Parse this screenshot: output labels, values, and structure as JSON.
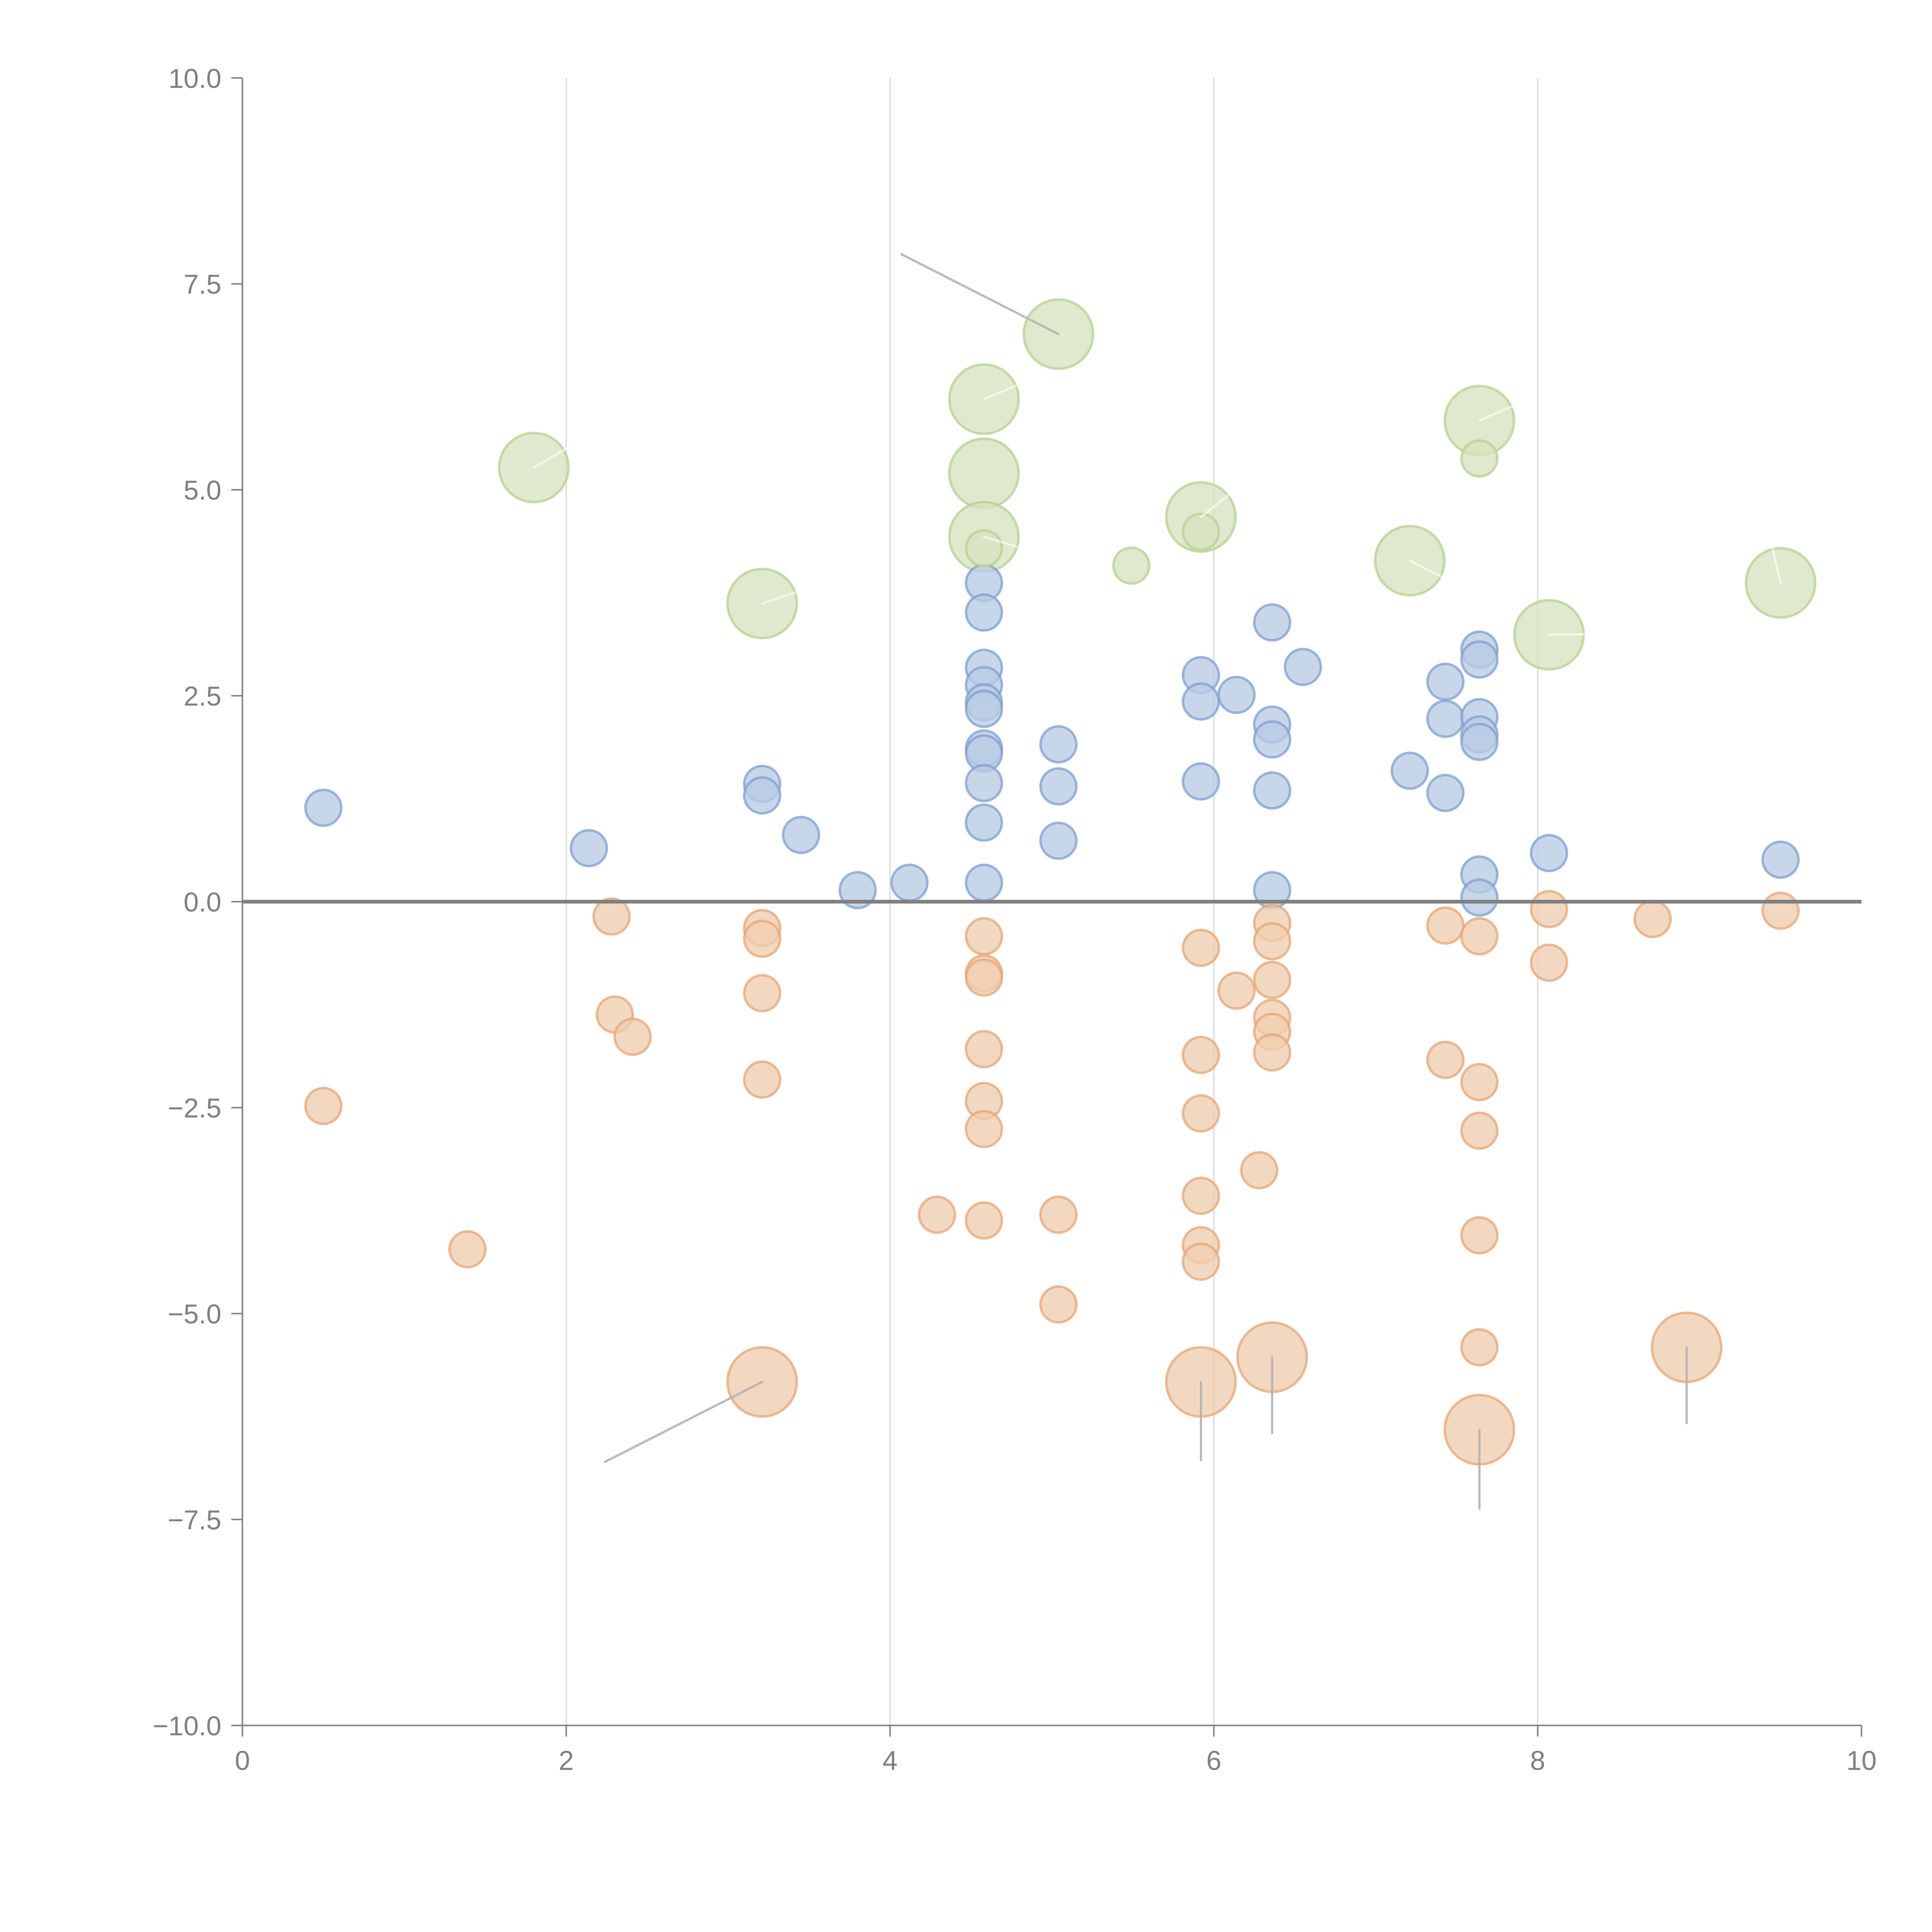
{
  "chart_data": {
    "type": "scatter",
    "subtype": "bubble",
    "title": "",
    "xlabel": "",
    "ylabel": "",
    "xlim": [
      0,
      10
    ],
    "ylim": [
      -10,
      10
    ],
    "x_ticks": [
      0,
      2,
      4,
      6,
      8,
      10
    ],
    "x_tick_labels": [
      "0",
      "2",
      "4",
      "6",
      "8",
      "10"
    ],
    "y_ticks": [
      10,
      7.5,
      5,
      2.5,
      0,
      -2.5,
      -5,
      -7.5,
      -10
    ],
    "y_tick_labels": [
      "10.0",
      "7.5",
      "5.0",
      "2.5",
      "0.0",
      "−2.5",
      "−5.0",
      "−7.5",
      "−10.0"
    ],
    "grid": {
      "x": true,
      "y": false
    },
    "zero_line": true,
    "legend": "none",
    "colors": {
      "blue_fill": "#b8cbe4",
      "blue_stroke": "#7f9fd0",
      "orange_fill": "#f0cdaf",
      "orange_stroke": "#e6a674",
      "green_fill": "#d6e3bf",
      "green_stroke": "#b6d08f",
      "axis": "#808080",
      "grid": "#d9d9d9",
      "leader_gray": "#b3b3b3",
      "leader_white": "#ffffff"
    },
    "series": [
      {
        "name": "blue",
        "size": "small",
        "points": [
          [
            0.5,
            1.14
          ],
          [
            2.14,
            0.65
          ],
          [
            3.21,
            1.43
          ],
          [
            3.21,
            1.29
          ],
          [
            3.45,
            0.81
          ],
          [
            3.8,
            0.14
          ],
          [
            4.12,
            0.23
          ],
          [
            4.58,
            3.87
          ],
          [
            4.58,
            3.51
          ],
          [
            4.58,
            2.84
          ],
          [
            4.58,
            2.63
          ],
          [
            4.58,
            2.42
          ],
          [
            4.58,
            2.34
          ],
          [
            4.58,
            1.86
          ],
          [
            4.58,
            1.8
          ],
          [
            4.58,
            1.44
          ],
          [
            4.58,
            0.96
          ],
          [
            4.58,
            0.23
          ],
          [
            5.04,
            1.91
          ],
          [
            5.04,
            1.4
          ],
          [
            5.04,
            0.74
          ],
          [
            5.92,
            2.75
          ],
          [
            5.92,
            2.43
          ],
          [
            5.92,
            1.46
          ],
          [
            6.14,
            2.51
          ],
          [
            6.36,
            3.39
          ],
          [
            6.36,
            2.15
          ],
          [
            6.36,
            1.97
          ],
          [
            6.36,
            1.35
          ],
          [
            6.36,
            0.14
          ],
          [
            6.55,
            2.85
          ],
          [
            7.21,
            1.59
          ],
          [
            7.43,
            2.67
          ],
          [
            7.43,
            2.22
          ],
          [
            7.43,
            1.32
          ],
          [
            7.64,
            3.06
          ],
          [
            7.64,
            2.94
          ],
          [
            7.64,
            2.24
          ],
          [
            7.64,
            2.03
          ],
          [
            7.64,
            1.94
          ],
          [
            7.64,
            0.33
          ],
          [
            7.64,
            0.05
          ],
          [
            8.07,
            0.59
          ],
          [
            9.5,
            0.51
          ]
        ]
      },
      {
        "name": "orange",
        "size": "small",
        "points": [
          [
            0.5,
            -2.48
          ],
          [
            1.39,
            -4.22
          ],
          [
            2.28,
            -0.18
          ],
          [
            2.3,
            -1.37
          ],
          [
            2.41,
            -1.64
          ],
          [
            3.21,
            -0.32
          ],
          [
            3.21,
            -0.45
          ],
          [
            3.21,
            -1.11
          ],
          [
            3.21,
            -2.16
          ],
          [
            4.29,
            -3.8
          ],
          [
            4.58,
            -0.42
          ],
          [
            4.58,
            -0.87
          ],
          [
            4.58,
            -0.92
          ],
          [
            4.58,
            -1.79
          ],
          [
            4.58,
            -2.42
          ],
          [
            4.58,
            -2.76
          ],
          [
            4.58,
            -3.87
          ],
          [
            5.04,
            -3.8
          ],
          [
            5.04,
            -4.89
          ],
          [
            5.92,
            -0.56
          ],
          [
            5.92,
            -1.86
          ],
          [
            5.92,
            -2.57
          ],
          [
            5.92,
            -3.57
          ],
          [
            5.92,
            -4.17
          ],
          [
            5.92,
            -4.37
          ],
          [
            6.14,
            -1.08
          ],
          [
            6.28,
            -3.26
          ],
          [
            6.36,
            -0.26
          ],
          [
            6.36,
            -0.48
          ],
          [
            6.36,
            -0.95
          ],
          [
            6.36,
            -1.41
          ],
          [
            6.36,
            -1.58
          ],
          [
            6.36,
            -1.83
          ],
          [
            7.43,
            -0.29
          ],
          [
            7.43,
            -1.92
          ],
          [
            7.64,
            -0.42
          ],
          [
            7.64,
            -2.19
          ],
          [
            7.64,
            -2.78
          ],
          [
            7.64,
            -4.05
          ],
          [
            7.64,
            -5.41
          ],
          [
            8.07,
            -0.09
          ],
          [
            8.07,
            -0.74
          ],
          [
            8.71,
            -0.21
          ],
          [
            9.5,
            -0.11
          ]
        ]
      },
      {
        "name": "orange-large",
        "size": "large",
        "color": "orange",
        "points": [
          [
            3.21,
            -5.83
          ],
          [
            5.92,
            -5.83
          ],
          [
            6.36,
            -5.53
          ],
          [
            7.64,
            -6.41
          ],
          [
            8.92,
            -5.41
          ]
        ]
      },
      {
        "name": "green-large",
        "size": "large",
        "color": "green",
        "points": [
          [
            1.8,
            5.27
          ],
          [
            3.21,
            3.62
          ],
          [
            4.58,
            6.1
          ],
          [
            4.58,
            5.2
          ],
          [
            4.58,
            4.43
          ],
          [
            5.04,
            6.89
          ],
          [
            5.92,
            4.67
          ],
          [
            7.21,
            4.14
          ],
          [
            7.64,
            5.84
          ],
          [
            8.07,
            3.24
          ],
          [
            9.5,
            3.87
          ]
        ]
      },
      {
        "name": "green-small",
        "size": "small",
        "color": "green",
        "points": [
          [
            4.58,
            4.29
          ],
          [
            5.49,
            4.08
          ],
          [
            5.92,
            4.49
          ],
          [
            7.64,
            5.38
          ]
        ]
      }
    ],
    "annotations": [
      {
        "kind": "leader",
        "color": "gray",
        "from": [
          3.21,
          -5.83
        ],
        "to": [
          2.24,
          -6.8
        ]
      },
      {
        "kind": "leader",
        "color": "gray",
        "from": [
          5.92,
          -5.83
        ],
        "to": [
          5.92,
          -6.78
        ]
      },
      {
        "kind": "leader",
        "color": "gray",
        "from": [
          6.36,
          -5.53
        ],
        "to": [
          6.36,
          -6.45
        ]
      },
      {
        "kind": "leader",
        "color": "gray",
        "from": [
          7.64,
          -6.41
        ],
        "to": [
          7.64,
          -7.37
        ]
      },
      {
        "kind": "leader",
        "color": "gray",
        "from": [
          8.92,
          -5.41
        ],
        "to": [
          8.92,
          -6.33
        ]
      },
      {
        "kind": "leader",
        "color": "gray",
        "from": [
          5.04,
          6.89
        ],
        "to": [
          4.07,
          7.86
        ]
      },
      {
        "kind": "leader",
        "color": "white",
        "from": [
          1.8,
          5.27
        ],
        "to": [
          2.0,
          5.5
        ]
      },
      {
        "kind": "leader",
        "color": "white",
        "from": [
          3.21,
          3.62
        ],
        "to": [
          3.41,
          3.75
        ]
      },
      {
        "kind": "leader",
        "color": "white",
        "from": [
          4.58,
          6.1
        ],
        "to": [
          4.8,
          6.28
        ]
      },
      {
        "kind": "leader",
        "color": "white",
        "from": [
          4.58,
          4.43
        ],
        "to": [
          4.8,
          4.3
        ]
      },
      {
        "kind": "leader",
        "color": "white",
        "from": [
          5.92,
          4.67
        ],
        "to": [
          6.1,
          4.95
        ]
      },
      {
        "kind": "leader",
        "color": "white",
        "from": [
          7.21,
          4.14
        ],
        "to": [
          7.4,
          3.95
        ]
      },
      {
        "kind": "leader",
        "color": "white",
        "from": [
          7.64,
          5.84
        ],
        "to": [
          7.85,
          6.02
        ]
      },
      {
        "kind": "leader",
        "color": "white",
        "from": [
          8.07,
          3.24
        ],
        "to": [
          8.4,
          3.25
        ]
      },
      {
        "kind": "leader",
        "color": "white",
        "from": [
          9.5,
          3.87
        ],
        "to": [
          9.45,
          4.3
        ]
      }
    ]
  }
}
